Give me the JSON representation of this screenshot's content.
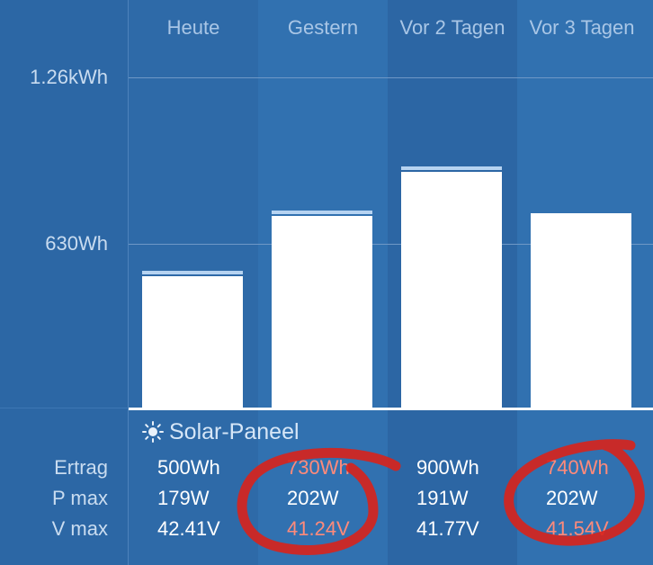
{
  "chart_data": {
    "type": "bar",
    "categories": [
      "Heute",
      "Gestern",
      "Vor 2 Tagen",
      "Vor 3 Tagen"
    ],
    "values": [
      500,
      730,
      900,
      740
    ],
    "yticks": [
      {
        "value": 630,
        "label": "630Wh"
      },
      {
        "value": 1260,
        "label": "1.26kWh"
      }
    ],
    "ylim": [
      0,
      1260
    ],
    "colors": {
      "background": "#2c67a5",
      "bar": "#ffffff",
      "bar_cap": "#b6d3f1",
      "warn": "#ff8a7a",
      "annotation": "#d9221b"
    }
  },
  "section": {
    "icon": "sun-icon",
    "title": "Solar-Paneel"
  },
  "table": {
    "rows": [
      {
        "label": "Ertrag",
        "values": [
          "500Wh",
          "730Wh",
          "900Wh",
          "740Wh"
        ]
      },
      {
        "label": "P max",
        "values": [
          "179W",
          "202W",
          "191W",
          "202W"
        ]
      },
      {
        "label": "V max",
        "values": [
          "42.41V",
          "41.24V",
          "41.77V",
          "41.54V"
        ]
      }
    ]
  }
}
